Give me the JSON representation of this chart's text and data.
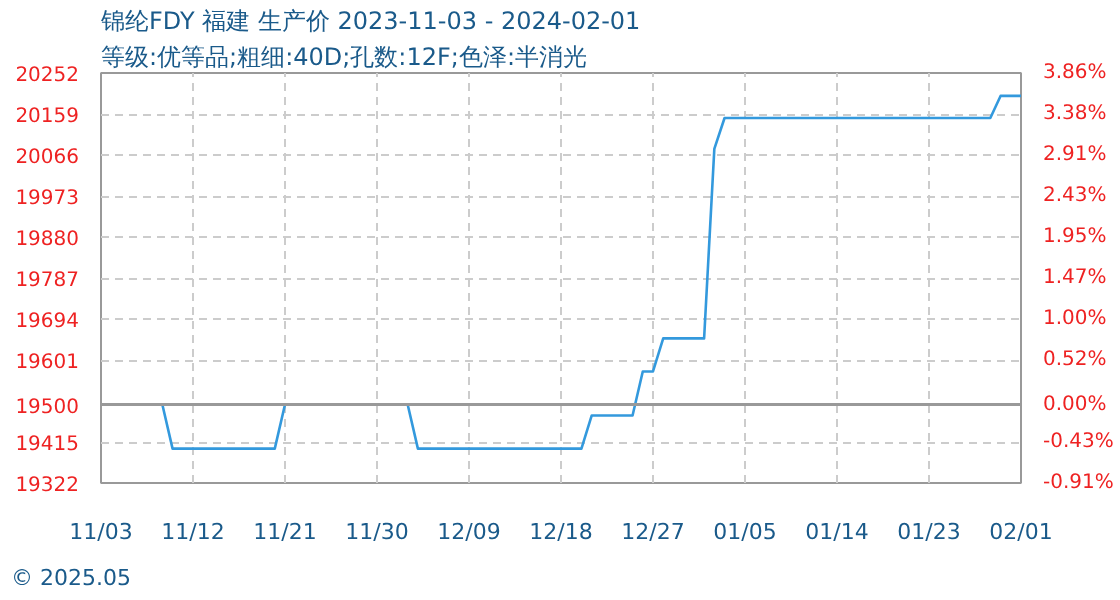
{
  "chart_data": {
    "type": "line",
    "title": "锦纶FDY 福建 生产价 2023-11-03 - 2024-02-01",
    "subtitle": "等级:优等品;粗细:40D;孔数:12F;色泽:半消光",
    "annotations": [
      "© 2025.05"
    ],
    "x": [
      "2023-11-03",
      "2023-11-09",
      "2023-11-10",
      "2023-11-20",
      "2023-11-21",
      "2023-12-03",
      "2023-12-04",
      "2023-12-20",
      "2023-12-21",
      "2023-12-25",
      "2023-12-26",
      "2023-12-27",
      "2023-12-28",
      "2024-01-01",
      "2024-01-02",
      "2024-01-03",
      "2024-01-29",
      "2024-01-30",
      "2024-02-01"
    ],
    "series": [
      {
        "color": "#3399dd",
        "values": [
          19500,
          19500,
          19400,
          19400,
          19500,
          19500,
          19400,
          19400,
          19475,
          19475,
          19575,
          19575,
          19650,
          19650,
          20080,
          20150,
          20150,
          20200,
          20200
        ]
      }
    ],
    "xlim": [
      "2023-11-03",
      "2024-02-01"
    ],
    "xticks": [
      {
        "value": "2023-11-03",
        "label": "11/03"
      },
      {
        "value": "2023-11-12",
        "label": "11/12"
      },
      {
        "value": "2023-11-21",
        "label": "11/21"
      },
      {
        "value": "2023-11-30",
        "label": "11/30"
      },
      {
        "value": "2023-12-09",
        "label": "12/09"
      },
      {
        "value": "2023-12-18",
        "label": "12/18"
      },
      {
        "value": "2023-12-27",
        "label": "12/27"
      },
      {
        "value": "2024-01-05",
        "label": "01/05"
      },
      {
        "value": "2024-01-14",
        "label": "01/14"
      },
      {
        "value": "2024-01-23",
        "label": "01/23"
      },
      {
        "value": "2024-02-01",
        "label": "02/01"
      }
    ],
    "ylim": [
      19322,
      20252
    ],
    "yticks": [
      19322,
      19415,
      19500,
      19601,
      19694,
      19787,
      19880,
      19973,
      20066,
      20159,
      20252
    ],
    "y2lim": [
      -0.91,
      3.86
    ],
    "y2ticks": [
      {
        "value": -0.91,
        "label": "-0.91%"
      },
      {
        "value": -0.43,
        "label": "-0.43%"
      },
      {
        "value": 0.0,
        "label": "0.00%"
      },
      {
        "value": 0.52,
        "label": "0.52%"
      },
      {
        "value": 1.0,
        "label": "1.00%"
      },
      {
        "value": 1.47,
        "label": "1.47%"
      },
      {
        "value": 1.95,
        "label": "1.95%"
      },
      {
        "value": 2.43,
        "label": "2.43%"
      },
      {
        "value": 2.91,
        "label": "2.91%"
      },
      {
        "value": 3.38,
        "label": "3.38%"
      },
      {
        "value": 3.86,
        "label": "3.86%"
      }
    ],
    "ref_lines": [
      {
        "axis": "y",
        "value": 19500,
        "color": "#999999"
      }
    ],
    "grid": true,
    "marker": "none",
    "line_style": "solid"
  }
}
